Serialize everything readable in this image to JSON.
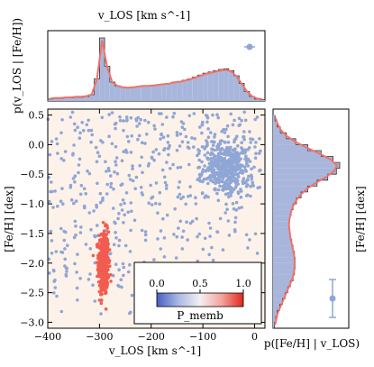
{
  "chart_data": {
    "type": "scatter",
    "title": "",
    "top_label": "v_LOS [km s^-1]",
    "xlabel": "v_LOS [km s^-1]",
    "ylabel": "[Fe/H] [dex]",
    "right_ylabel": "[Fe/H] [dex]",
    "top_hist_ylabel": "p(v_LOS | [Fe/H])",
    "right_hist_xlabel": "p([Fe/H] | v_LOS)",
    "xlim": [
      -400,
      20
    ],
    "ylim": [
      -3.1,
      0.6
    ],
    "x_ticks": [
      -400,
      -300,
      -200,
      -100,
      0
    ],
    "x_tick_labels": [
      "−400",
      "−300",
      "−200",
      "−100",
      "0"
    ],
    "y_ticks": [
      0.5,
      0.0,
      -0.5,
      -1.0,
      -1.5,
      -2.0,
      -2.5,
      -3.0
    ],
    "y_tick_labels": [
      "0.5",
      "0.0",
      "−0.5",
      "−1.0",
      "−1.5",
      "−2.0",
      "−2.5",
      "−3.0"
    ],
    "colorbar": {
      "label": "P_memb",
      "ticks": [
        0.0,
        0.5,
        1.0
      ],
      "tick_labels": [
        "0.0",
        "0.5",
        "1.0"
      ],
      "location": "lower-right"
    },
    "colors": {
      "member": "#f25c50",
      "nonmember": "#8fa6d6",
      "hist_fill": "#a8b6dc",
      "model_curve": "#f0736a",
      "background": "#fdf2e9"
    },
    "populations": [
      {
        "kind": "member",
        "center": [
          -292,
          -2.0
        ],
        "spread": [
          5,
          0.27
        ],
        "count": 440
      },
      {
        "kind": "nonmember-disk",
        "center": [
          -55,
          -0.4
        ],
        "spread": [
          22,
          0.22
        ],
        "count": 420
      },
      {
        "kind": "nonmember-broad",
        "x_range": [
          -400,
          10
        ],
        "y_range": [
          -3.05,
          0.55
        ],
        "count": 520
      }
    ],
    "top_hist": {
      "bins": [
        -400,
        -390,
        -380,
        -370,
        -360,
        -350,
        -340,
        -330,
        -320,
        -310,
        -300,
        -290,
        -280,
        -270,
        -260,
        -250,
        -240,
        -230,
        -220,
        -210,
        -200,
        -190,
        -180,
        -170,
        -160,
        -150,
        -140,
        -130,
        -120,
        -110,
        -100,
        -90,
        -80,
        -70,
        -60,
        -50,
        -40,
        -30,
        -20,
        -10,
        0,
        10,
        20
      ],
      "density": [
        0.03,
        0.04,
        0.04,
        0.05,
        0.05,
        0.06,
        0.06,
        0.07,
        0.1,
        0.35,
        1.0,
        0.55,
        0.3,
        0.24,
        0.22,
        0.21,
        0.22,
        0.23,
        0.24,
        0.24,
        0.25,
        0.26,
        0.27,
        0.28,
        0.3,
        0.31,
        0.33,
        0.35,
        0.38,
        0.41,
        0.44,
        0.46,
        0.48,
        0.5,
        0.51,
        0.48,
        0.4,
        0.28,
        0.15,
        0.07,
        0.03,
        0.02
      ]
    },
    "right_hist": {
      "feh_bins": [
        -3.1,
        -3.0,
        -2.9,
        -2.8,
        -2.7,
        -2.6,
        -2.5,
        -2.4,
        -2.3,
        -2.2,
        -2.1,
        -2.0,
        -1.9,
        -1.8,
        -1.7,
        -1.6,
        -1.5,
        -1.4,
        -1.3,
        -1.2,
        -1.1,
        -1.0,
        -0.9,
        -0.8,
        -0.7,
        -0.6,
        -0.5,
        -0.4,
        -0.3,
        -0.2,
        -0.1,
        0.0,
        0.1,
        0.2,
        0.3,
        0.4,
        0.5
      ],
      "density": [
        0.02,
        0.04,
        0.06,
        0.1,
        0.14,
        0.18,
        0.22,
        0.26,
        0.3,
        0.32,
        0.33,
        0.33,
        0.32,
        0.3,
        0.28,
        0.26,
        0.25,
        0.24,
        0.25,
        0.27,
        0.3,
        0.35,
        0.42,
        0.52,
        0.66,
        0.82,
        0.95,
        1.0,
        0.9,
        0.72,
        0.52,
        0.34,
        0.2,
        0.11,
        0.06,
        0.03
      ]
    }
  }
}
